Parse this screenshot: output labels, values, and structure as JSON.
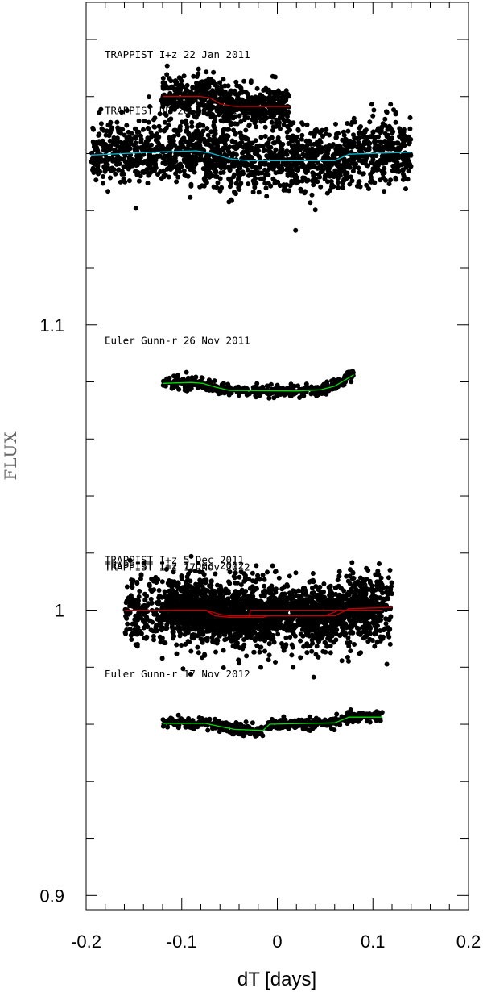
{
  "chart_data": {
    "type": "scatter",
    "title": "",
    "xlabel": "dT [days]",
    "ylabel": "FLUX",
    "xlim": [
      -0.2,
      0.2
    ],
    "ylim": [
      0.895,
      1.213
    ],
    "x_ticks": [
      -0.2,
      -0.1,
      0,
      0.1,
      0.2
    ],
    "x_tick_labels": [
      "-0.2",
      "-0.1",
      "0",
      "0.1",
      "0.2"
    ],
    "y_ticks": [
      0.9,
      1,
      1.1
    ],
    "y_tick_labels": [
      "0.9",
      "1",
      "1.1"
    ],
    "grid": false,
    "series": [
      {
        "name": "TRAPPIST I+z 22 Jan 2011",
        "model_color": "#c00000",
        "x_range": [
          -0.12,
          0.013
        ],
        "scatter": 0.0038,
        "density": 650,
        "model": [
          [
            -0.12,
            1.18
          ],
          [
            -0.08,
            1.18
          ],
          [
            -0.07,
            1.1795
          ],
          [
            -0.06,
            1.1775
          ],
          [
            -0.045,
            1.1765
          ],
          [
            0.013,
            1.1765
          ]
        ]
      },
      {
        "name": "TRAPPIST BB 26 Oct 2011",
        "model_color": "#00bcd4",
        "x_range": [
          -0.195,
          0.14
        ],
        "scatter": 0.0055,
        "density": 1700,
        "model": [
          [
            -0.195,
            1.1595
          ],
          [
            -0.13,
            1.1605
          ],
          [
            -0.085,
            1.161
          ],
          [
            -0.07,
            1.1602
          ],
          [
            -0.05,
            1.1582
          ],
          [
            -0.03,
            1.1575
          ],
          [
            0.06,
            1.1575
          ],
          [
            0.075,
            1.1598
          ],
          [
            0.14,
            1.1605
          ]
        ]
      },
      {
        "name": "Euler Gunn-r 26 Nov 2011",
        "model_color": "#00dd00",
        "x_range": [
          -0.12,
          0.08
        ],
        "scatter": 0.001,
        "density": 420,
        "model": [
          [
            -0.12,
            1.0795
          ],
          [
            -0.09,
            1.0798
          ],
          [
            -0.078,
            1.0795
          ],
          [
            -0.065,
            1.0782
          ],
          [
            -0.05,
            1.077
          ],
          [
            0.02,
            1.0768
          ],
          [
            0.045,
            1.0772
          ],
          [
            0.06,
            1.0785
          ],
          [
            0.07,
            1.0805
          ],
          [
            0.08,
            1.0825
          ]
        ]
      },
      {
        "name": "TRAPPIST I+z 5 Dec 2011",
        "model_color": "#c00000",
        "x_range": [
          -0.12,
          0.068
        ],
        "scatter": 0.0028,
        "density": 850,
        "model": [
          [
            -0.12,
            1.0
          ],
          [
            -0.075,
            1.0
          ],
          [
            -0.065,
            0.998
          ],
          [
            -0.05,
            0.9975
          ],
          [
            -0.03,
            0.9975
          ],
          [
            -0.028,
            1.0
          ],
          [
            0.068,
            1.0
          ]
        ]
      },
      {
        "name": "TRAPPIST I+z 17 Nov 2012",
        "model_color": "#c00000",
        "x_range": [
          -0.16,
          0.12
        ],
        "scatter": 0.0065,
        "density": 1200,
        "model": [
          [
            -0.16,
            1.0
          ],
          [
            -0.075,
            1.0
          ],
          [
            -0.065,
            0.998
          ],
          [
            -0.05,
            0.9975
          ],
          [
            -0.015,
            0.9975
          ],
          [
            -0.01,
            0.998
          ],
          [
            0.06,
            0.998
          ],
          [
            0.075,
            1.0005
          ],
          [
            0.12,
            1.001
          ]
        ]
      },
      {
        "name": "Euler Gunn-r 17 Nov 2012",
        "model_color": "#00dd00",
        "x_range": [
          -0.12,
          0.11
        ],
        "scatter": 0.0009,
        "density": 520,
        "model": [
          [
            -0.12,
            0.9603
          ],
          [
            -0.075,
            0.9603
          ],
          [
            -0.06,
            0.9592
          ],
          [
            -0.045,
            0.9582
          ],
          [
            -0.015,
            0.9578
          ],
          [
            -0.008,
            0.96
          ],
          [
            0.06,
            0.9605
          ],
          [
            0.075,
            0.9625
          ],
          [
            0.11,
            0.9625
          ]
        ]
      },
      {
        "name": "TRAPPIST I+z 7 Dec 2012",
        "model_color": "#c00000",
        "x_range": [
          -0.11,
          0.11
        ],
        "scatter": 0.0055,
        "density": 1150,
        "gap": [
          0.0,
          0.027
        ],
        "model": [
          [
            -0.11,
            1.0
          ],
          [
            -0.075,
            1.0
          ],
          [
            -0.06,
            0.9985
          ],
          [
            -0.05,
            0.998
          ],
          [
            0.05,
            0.998
          ],
          [
            0.065,
            1.0
          ],
          [
            0.11,
            1.0
          ]
        ]
      }
    ]
  }
}
